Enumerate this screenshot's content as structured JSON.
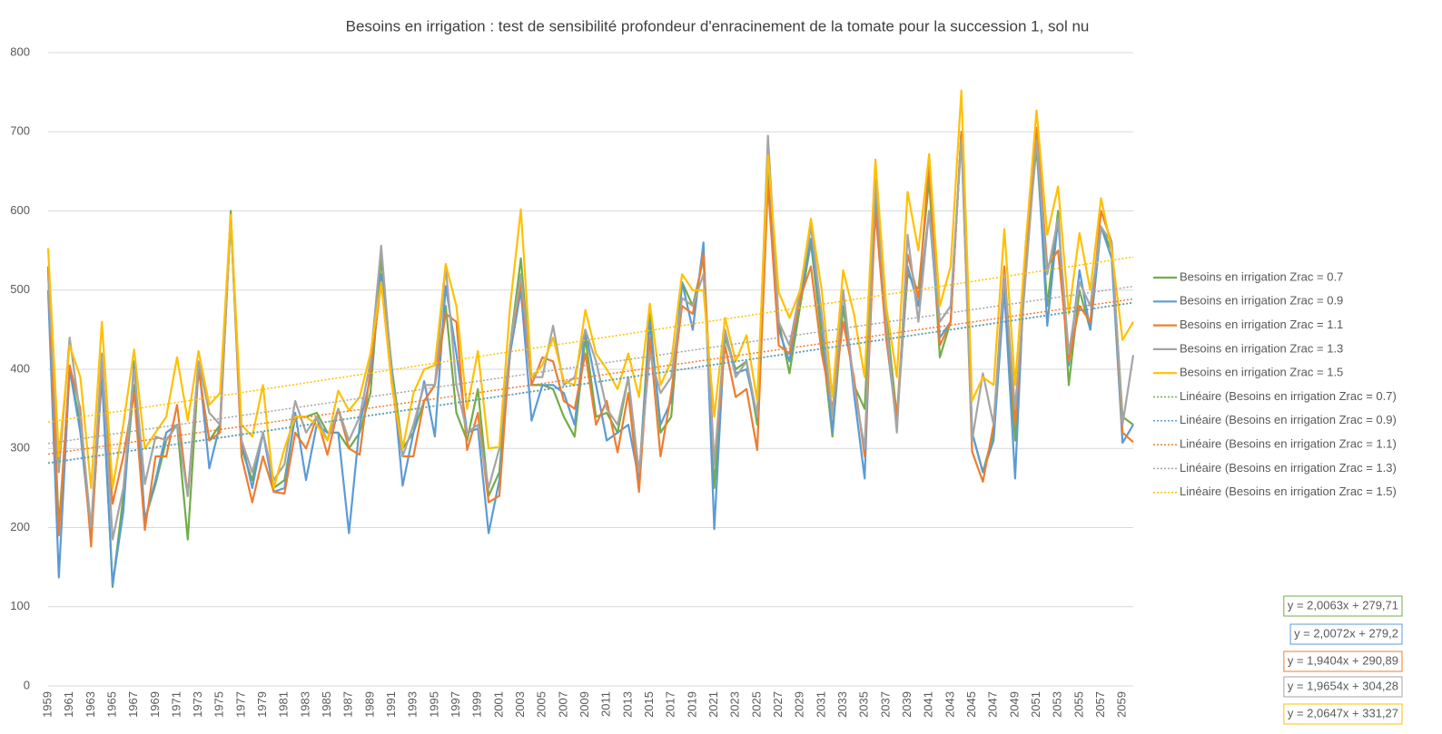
{
  "chart_data": {
    "type": "line",
    "title": "Besoins en irrigation : test de sensibilité profondeur d'enracinement de la tomate pour la succession 1, sol nu",
    "categories": [
      "1959",
      null,
      "1961",
      null,
      "1963",
      null,
      "1965",
      null,
      "1967",
      null,
      "1969",
      null,
      "1971",
      null,
      "1973",
      null,
      "1975",
      null,
      "1977",
      null,
      "1979",
      null,
      "1981",
      null,
      "1983",
      null,
      "1985",
      null,
      "1987",
      null,
      "1989",
      null,
      "1991",
      null,
      "1993",
      null,
      "1995",
      null,
      "1997",
      null,
      "1999",
      null,
      "2001",
      null,
      "2003",
      null,
      "2005",
      null,
      "2007",
      null,
      "2009",
      null,
      "2011",
      null,
      "2013",
      null,
      "2015",
      null,
      "2017",
      null,
      "2019",
      null,
      "2021",
      null,
      "2023",
      null,
      "2025",
      null,
      "2027",
      null,
      "2029",
      null,
      "2031",
      null,
      "2033",
      null,
      "2035",
      null,
      "2037",
      null,
      "2039",
      null,
      "2041",
      null,
      "2043",
      null,
      "2045",
      null,
      "2047",
      null,
      "2049",
      null,
      "2051",
      null,
      "2053",
      null,
      "2055",
      null,
      "2057",
      null,
      "2059",
      null
    ],
    "ylim": [
      0,
      800
    ],
    "yticks": [
      0,
      100,
      200,
      300,
      400,
      500,
      600,
      700,
      800
    ],
    "grid": true,
    "series": [
      {
        "name": "Besoins en irrigation Zrac = 0.7",
        "color": "#70ad47",
        "values": [
          530,
          200,
          400,
          330,
          185,
          400,
          125,
          240,
          380,
          210,
          255,
          310,
          330,
          185,
          400,
          310,
          330,
          600,
          300,
          260,
          320,
          250,
          260,
          340,
          340,
          345,
          320,
          320,
          300,
          320,
          370,
          540,
          400,
          300,
          320,
          360,
          380,
          480,
          345,
          310,
          375,
          240,
          270,
          430,
          540,
          380,
          380,
          375,
          340,
          315,
          440,
          340,
          345,
          320,
          390,
          260,
          470,
          320,
          340,
          510,
          480,
          540,
          250,
          440,
          400,
          410,
          330,
          650,
          460,
          395,
          480,
          560,
          440,
          315,
          480,
          380,
          350,
          620,
          470,
          340,
          520,
          500,
          640,
          415,
          460,
          700,
          320,
          270,
          320,
          510,
          310,
          540,
          680,
          480,
          600,
          380,
          500,
          450,
          580,
          550,
          340,
          330
        ]
      },
      {
        "name": "Besoins en irrigation Zrac = 0.9",
        "color": "#5b9bd5",
        "values": [
          500,
          137,
          400,
          320,
          190,
          390,
          128,
          220,
          410,
          210,
          260,
          320,
          330,
          240,
          410,
          275,
          330,
          590,
          310,
          250,
          320,
          245,
          250,
          345,
          260,
          330,
          320,
          320,
          193,
          330,
          390,
          520,
          400,
          253,
          320,
          385,
          315,
          505,
          420,
          320,
          325,
          193,
          260,
          420,
          500,
          335,
          380,
          380,
          370,
          330,
          450,
          380,
          310,
          320,
          330,
          260,
          460,
          330,
          360,
          510,
          450,
          560,
          198,
          450,
          395,
          400,
          340,
          680,
          450,
          410,
          490,
          565,
          460,
          320,
          500,
          370,
          262,
          640,
          440,
          330,
          530,
          480,
          600,
          440,
          460,
          700,
          320,
          270,
          310,
          500,
          262,
          560,
          700,
          455,
          590,
          405,
          525,
          450,
          580,
          540,
          307,
          330
        ]
      },
      {
        "name": "Besoins en irrigation Zrac = 1.1",
        "color": "#ed7d31",
        "values": [
          525,
          190,
          405,
          350,
          176,
          410,
          230,
          290,
          370,
          197,
          290,
          290,
          355,
          240,
          400,
          310,
          320,
          595,
          290,
          232,
          290,
          245,
          243,
          320,
          300,
          340,
          292,
          350,
          300,
          292,
          400,
          510,
          380,
          290,
          290,
          360,
          380,
          470,
          460,
          298,
          345,
          232,
          240,
          430,
          510,
          380,
          415,
          410,
          360,
          350,
          420,
          330,
          360,
          295,
          370,
          245,
          440,
          290,
          370,
          480,
          470,
          545,
          280,
          430,
          365,
          375,
          298,
          635,
          430,
          420,
          490,
          530,
          420,
          350,
          460,
          390,
          290,
          600,
          440,
          340,
          545,
          490,
          660,
          430,
          460,
          700,
          296,
          258,
          330,
          530,
          330,
          530,
          705,
          530,
          550,
          410,
          480,
          460,
          600,
          560,
          320,
          308
        ]
      },
      {
        "name": "Besoins en irrigation Zrac = 1.3",
        "color": "#a5a5a5",
        "values": [
          520,
          270,
          440,
          340,
          200,
          420,
          185,
          250,
          400,
          255,
          315,
          310,
          330,
          240,
          410,
          345,
          330,
          590,
          310,
          270,
          320,
          260,
          280,
          360,
          320,
          340,
          310,
          350,
          310,
          340,
          410,
          556,
          390,
          290,
          330,
          380,
          380,
          530,
          380,
          320,
          330,
          250,
          300,
          430,
          520,
          390,
          390,
          455,
          380,
          390,
          450,
          410,
          350,
          330,
          390,
          270,
          420,
          370,
          390,
          490,
          480,
          520,
          280,
          450,
          390,
          410,
          340,
          695,
          460,
          430,
          500,
          580,
          470,
          340,
          500,
          380,
          300,
          640,
          460,
          320,
          570,
          460,
          600,
          460,
          480,
          690,
          310,
          395,
          330,
          520,
          350,
          520,
          690,
          520,
          590,
          420,
          510,
          480,
          580,
          560,
          330,
          418
        ]
      },
      {
        "name": "Besoins en irrigation Zrac = 1.5",
        "color": "#ffc000",
        "values": [
          553,
          290,
          430,
          390,
          250,
          460,
          250,
          330,
          425,
          300,
          320,
          340,
          415,
          335,
          423,
          355,
          370,
          595,
          330,
          315,
          380,
          250,
          300,
          340,
          340,
          330,
          310,
          373,
          348,
          365,
          420,
          510,
          380,
          300,
          370,
          400,
          405,
          533,
          480,
          350,
          423,
          300,
          302,
          480,
          602,
          390,
          405,
          440,
          385,
          380,
          475,
          420,
          400,
          375,
          420,
          365,
          483,
          380,
          410,
          520,
          500,
          500,
          340,
          465,
          410,
          443,
          360,
          670,
          497,
          465,
          500,
          590,
          500,
          365,
          525,
          470,
          390,
          665,
          480,
          390,
          624,
          550,
          672,
          480,
          530,
          752,
          360,
          390,
          380,
          577,
          380,
          560,
          727,
          570,
          631,
          470,
          572,
          500,
          616,
          550,
          437,
          460
        ]
      }
    ],
    "trendlines": [
      {
        "name": "Linéaire (Besoins en irrigation Zrac = 0.7)",
        "color": "#70ad47",
        "slope": 2.0063,
        "intercept": 279.71,
        "equation": "y = 2,0063x + 279,71"
      },
      {
        "name": "Linéaire (Besoins en irrigation Zrac = 0.9)",
        "color": "#5b9bd5",
        "slope": 2.0072,
        "intercept": 279.2,
        "equation": "y = 2,0072x + 279,2"
      },
      {
        "name": "Linéaire (Besoins en irrigation Zrac = 1.1)",
        "color": "#ed7d31",
        "slope": 1.9404,
        "intercept": 290.89,
        "equation": "y = 1,9404x + 290,89"
      },
      {
        "name": "Linéaire (Besoins en irrigation Zrac = 1.3)",
        "color": "#a5a5a5",
        "slope": 1.9654,
        "intercept": 304.28,
        "equation": "y = 1,9654x + 304,28"
      },
      {
        "name": "Linéaire (Besoins en irrigation Zrac = 1.5)",
        "color": "#ffc000",
        "slope": 2.0647,
        "intercept": 331.27,
        "equation": "y = 2,0647x + 331,27"
      }
    ]
  }
}
